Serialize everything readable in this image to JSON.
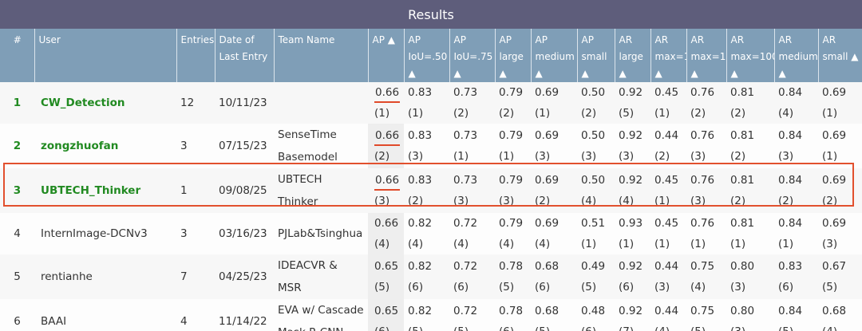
{
  "results_title": "Results",
  "headers": {
    "rank": "#",
    "user": "User",
    "entries": "Entries",
    "date_line1": "Date of",
    "date_line2": "Last Entry",
    "team": "Team Name",
    "cols": [
      {
        "l1": "AP ▲",
        "l2": ""
      },
      {
        "l1": "AP",
        "l2": "IoU=.50 ▲"
      },
      {
        "l1": "AP",
        "l2": "IoU=.75 ▲"
      },
      {
        "l1": "AP",
        "l2": "large ▲"
      },
      {
        "l1": "AP",
        "l2": "medium ▲"
      },
      {
        "l1": "AP",
        "l2": "small ▲"
      },
      {
        "l1": "AR",
        "l2": "large ▲"
      },
      {
        "l1": "AR",
        "l2": "max=1 ▲"
      },
      {
        "l1": "AR",
        "l2": "max=10 ▲"
      },
      {
        "l1": "AR",
        "l2": "max=100 ▲"
      },
      {
        "l1": "AR",
        "l2": "medium ▲"
      },
      {
        "l1": "AR",
        "l2": "small ▲"
      }
    ]
  },
  "rows": [
    {
      "rank": "1",
      "user": "CW_Detection",
      "entries": "12",
      "date": "10/11/23",
      "team_l1": "",
      "team_l2": "",
      "values": [
        [
          "0.66",
          "(1)"
        ],
        [
          "0.83",
          "(1)"
        ],
        [
          "0.73",
          "(2)"
        ],
        [
          "0.79",
          "(2)"
        ],
        [
          "0.69",
          "(1)"
        ],
        [
          "0.50",
          "(2)"
        ],
        [
          "0.92",
          "(5)"
        ],
        [
          "0.45",
          "(1)"
        ],
        [
          "0.76",
          "(2)"
        ],
        [
          "0.81",
          "(2)"
        ],
        [
          "0.84",
          "(4)"
        ],
        [
          "0.69",
          "(1)"
        ]
      ]
    },
    {
      "rank": "2",
      "user": "zongzhuofan",
      "entries": "3",
      "date": "07/15/23",
      "team_l1": "SenseTime",
      "team_l2": "Basemodel",
      "values": [
        [
          "0.66",
          "(2)"
        ],
        [
          "0.83",
          "(3)"
        ],
        [
          "0.73",
          "(1)"
        ],
        [
          "0.79",
          "(1)"
        ],
        [
          "0.69",
          "(3)"
        ],
        [
          "0.50",
          "(3)"
        ],
        [
          "0.92",
          "(3)"
        ],
        [
          "0.44",
          "(2)"
        ],
        [
          "0.76",
          "(3)"
        ],
        [
          "0.81",
          "(2)"
        ],
        [
          "0.84",
          "(3)"
        ],
        [
          "0.69",
          "(1)"
        ]
      ]
    },
    {
      "rank": "3",
      "user": "UBTECH_Thinker",
      "entries": "1",
      "date": "09/08/25",
      "team_l1": "UBTECH Thinker",
      "team_l2": "",
      "values": [
        [
          "0.66",
          "(3)"
        ],
        [
          "0.83",
          "(2)"
        ],
        [
          "0.73",
          "(3)"
        ],
        [
          "0.79",
          "(3)"
        ],
        [
          "0.69",
          "(2)"
        ],
        [
          "0.50",
          "(4)"
        ],
        [
          "0.92",
          "(4)"
        ],
        [
          "0.45",
          "(1)"
        ],
        [
          "0.76",
          "(3)"
        ],
        [
          "0.81",
          "(2)"
        ],
        [
          "0.84",
          "(2)"
        ],
        [
          "0.69",
          "(2)"
        ]
      ]
    },
    {
      "rank": "4",
      "user": "InternImage-DCNv3",
      "entries": "3",
      "date": "03/16/23",
      "team_l1": "PJLab&Tsinghua",
      "team_l2": "",
      "values": [
        [
          "0.66",
          "(4)"
        ],
        [
          "0.82",
          "(4)"
        ],
        [
          "0.72",
          "(4)"
        ],
        [
          "0.79",
          "(4)"
        ],
        [
          "0.69",
          "(4)"
        ],
        [
          "0.51",
          "(1)"
        ],
        [
          "0.93",
          "(1)"
        ],
        [
          "0.45",
          "(1)"
        ],
        [
          "0.76",
          "(1)"
        ],
        [
          "0.81",
          "(1)"
        ],
        [
          "0.84",
          "(1)"
        ],
        [
          "0.69",
          "(3)"
        ]
      ]
    },
    {
      "rank": "5",
      "user": "rentianhe",
      "entries": "7",
      "date": "04/25/23",
      "team_l1": "IDEACVR &",
      "team_l2": "MSR",
      "values": [
        [
          "0.65",
          "(5)"
        ],
        [
          "0.82",
          "(6)"
        ],
        [
          "0.72",
          "(6)"
        ],
        [
          "0.78",
          "(5)"
        ],
        [
          "0.68",
          "(6)"
        ],
        [
          "0.49",
          "(5)"
        ],
        [
          "0.92",
          "(6)"
        ],
        [
          "0.44",
          "(3)"
        ],
        [
          "0.75",
          "(4)"
        ],
        [
          "0.80",
          "(3)"
        ],
        [
          "0.83",
          "(6)"
        ],
        [
          "0.67",
          "(5)"
        ]
      ]
    },
    {
      "rank": "6",
      "user": "BAAI",
      "entries": "4",
      "date": "11/14/22",
      "team_l1": "EVA w/ Cascade",
      "team_l2": "Mask R-CNN",
      "values": [
        [
          "0.65",
          "(6)"
        ],
        [
          "0.82",
          "(5)"
        ],
        [
          "0.72",
          "(5)"
        ],
        [
          "0.78",
          "(6)"
        ],
        [
          "0.68",
          "(5)"
        ],
        [
          "0.48",
          "(6)"
        ],
        [
          "0.92",
          "(7)"
        ],
        [
          "0.44",
          "(4)"
        ],
        [
          "0.75",
          "(5)"
        ],
        [
          "0.80",
          "(3)"
        ],
        [
          "0.84",
          "(5)"
        ],
        [
          "0.68",
          "(4)"
        ]
      ]
    }
  ],
  "colors": {
    "header_bar": "#5e5d7b",
    "header_row": "#7f9eb7",
    "leader_green": "#218a21",
    "highlight": "#e2502e"
  }
}
